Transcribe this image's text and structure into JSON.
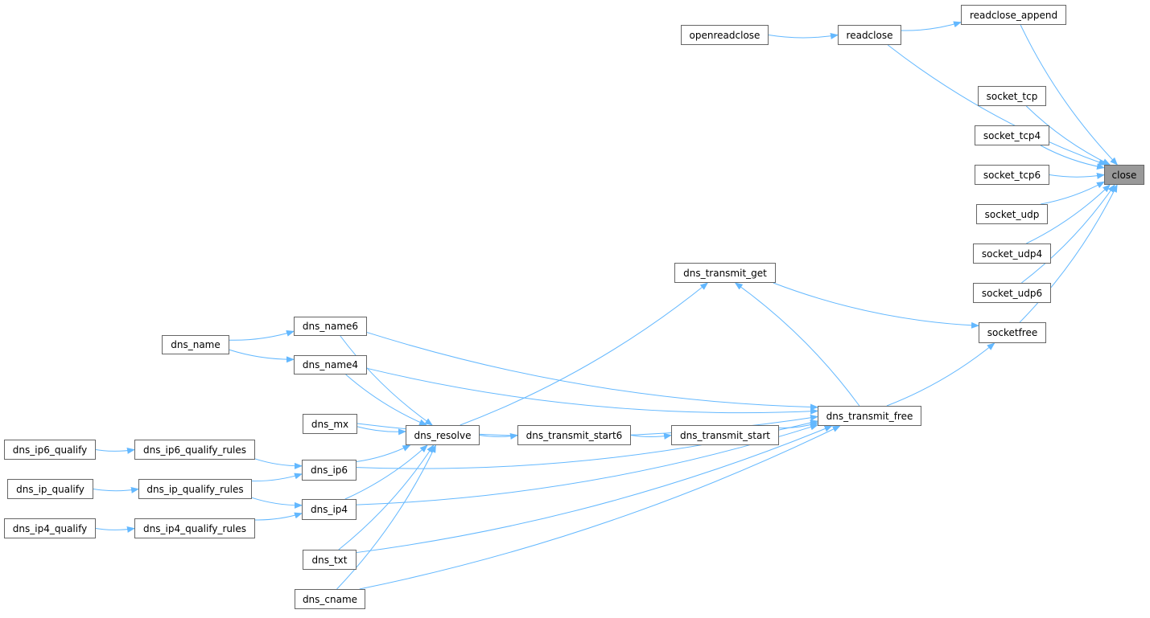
{
  "graph": {
    "highlight": "close",
    "edge_color": "#63b8ff",
    "highlight_fill": "#999999",
    "nodes": [
      {
        "id": "close",
        "label": "close"
      },
      {
        "id": "readclose_append",
        "label": "readclose_append"
      },
      {
        "id": "openreadclose",
        "label": "openreadclose"
      },
      {
        "id": "readclose",
        "label": "readclose"
      },
      {
        "id": "socket_tcp",
        "label": "socket_tcp"
      },
      {
        "id": "socket_tcp4",
        "label": "socket_tcp4"
      },
      {
        "id": "socket_tcp6",
        "label": "socket_tcp6"
      },
      {
        "id": "socket_udp",
        "label": "socket_udp"
      },
      {
        "id": "socket_udp4",
        "label": "socket_udp4"
      },
      {
        "id": "socket_udp6",
        "label": "socket_udp6"
      },
      {
        "id": "socketfree",
        "label": "socketfree"
      },
      {
        "id": "dns_transmit_get",
        "label": "dns_transmit_get"
      },
      {
        "id": "dns_name6",
        "label": "dns_name6"
      },
      {
        "id": "dns_name4",
        "label": "dns_name4"
      },
      {
        "id": "dns_name",
        "label": "dns_name"
      },
      {
        "id": "dns_transmit_free",
        "label": "dns_transmit_free"
      },
      {
        "id": "dns_mx",
        "label": "dns_mx"
      },
      {
        "id": "dns_resolve",
        "label": "dns_resolve"
      },
      {
        "id": "dns_transmit_start6",
        "label": "dns_transmit_start6"
      },
      {
        "id": "dns_transmit_start",
        "label": "dns_transmit_start"
      },
      {
        "id": "dns_ip6_qualify",
        "label": "dns_ip6_qualify"
      },
      {
        "id": "dns_ip6_qualify_rules",
        "label": "dns_ip6_qualify_rules"
      },
      {
        "id": "dns_ip6",
        "label": "dns_ip6"
      },
      {
        "id": "dns_ip_qualify",
        "label": "dns_ip_qualify"
      },
      {
        "id": "dns_ip_qualify_rules",
        "label": "dns_ip_qualify_rules"
      },
      {
        "id": "dns_ip4",
        "label": "dns_ip4"
      },
      {
        "id": "dns_ip4_qualify",
        "label": "dns_ip4_qualify"
      },
      {
        "id": "dns_ip4_qualify_rules",
        "label": "dns_ip4_qualify_rules"
      },
      {
        "id": "dns_txt",
        "label": "dns_txt"
      },
      {
        "id": "dns_cname",
        "label": "dns_cname"
      }
    ],
    "edges": [
      [
        "readclose_append",
        "close"
      ],
      [
        "readclose",
        "close"
      ],
      [
        "openreadclose",
        "readclose"
      ],
      [
        "readclose",
        "readclose_append"
      ],
      [
        "socket_tcp",
        "close"
      ],
      [
        "socket_tcp4",
        "close"
      ],
      [
        "socket_tcp6",
        "close"
      ],
      [
        "socket_udp",
        "close"
      ],
      [
        "socket_udp4",
        "close"
      ],
      [
        "socket_udp6",
        "close"
      ],
      [
        "socketfree",
        "close"
      ],
      [
        "dns_transmit_free",
        "socketfree"
      ],
      [
        "dns_transmit_get",
        "socketfree"
      ],
      [
        "dns_transmit_free",
        "dns_transmit_get"
      ],
      [
        "dns_resolve",
        "dns_transmit_get"
      ],
      [
        "dns_name6",
        "dns_transmit_free"
      ],
      [
        "dns_name4",
        "dns_transmit_free"
      ],
      [
        "dns_mx",
        "dns_transmit_free"
      ],
      [
        "dns_transmit_start",
        "dns_transmit_free"
      ],
      [
        "dns_ip6",
        "dns_transmit_free"
      ],
      [
        "dns_ip4",
        "dns_transmit_free"
      ],
      [
        "dns_txt",
        "dns_transmit_free"
      ],
      [
        "dns_cname",
        "dns_transmit_free"
      ],
      [
        "dns_resolve",
        "dns_transmit_start6"
      ],
      [
        "dns_transmit_start6",
        "dns_transmit_start"
      ],
      [
        "dns_name6",
        "dns_resolve"
      ],
      [
        "dns_name4",
        "dns_resolve"
      ],
      [
        "dns_mx",
        "dns_resolve"
      ],
      [
        "dns_ip6",
        "dns_resolve"
      ],
      [
        "dns_ip4",
        "dns_resolve"
      ],
      [
        "dns_txt",
        "dns_resolve"
      ],
      [
        "dns_cname",
        "dns_resolve"
      ],
      [
        "dns_name",
        "dns_name6"
      ],
      [
        "dns_name",
        "dns_name4"
      ],
      [
        "dns_ip6_qualify",
        "dns_ip6_qualify_rules"
      ],
      [
        "dns_ip6_qualify_rules",
        "dns_ip6"
      ],
      [
        "dns_ip_qualify",
        "dns_ip_qualify_rules"
      ],
      [
        "dns_ip_qualify_rules",
        "dns_ip6"
      ],
      [
        "dns_ip_qualify_rules",
        "dns_ip4"
      ],
      [
        "dns_ip4_qualify",
        "dns_ip4_qualify_rules"
      ],
      [
        "dns_ip4_qualify_rules",
        "dns_ip4"
      ]
    ]
  }
}
